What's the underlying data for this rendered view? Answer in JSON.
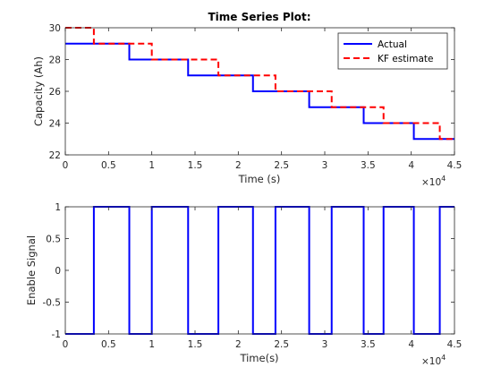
{
  "chart_data": [
    {
      "type": "line",
      "title": "Time Series Plot:",
      "xlabel": "Time (s)",
      "ylabel": "Capacity (Ah)",
      "x_multiplier": "×10",
      "x_multiplier_exp": "4",
      "xlim": [
        0,
        4.5
      ],
      "ylim": [
        22,
        30
      ],
      "xticks": [
        "0",
        "0.5",
        "1",
        "1.5",
        "2",
        "2.5",
        "3",
        "3.5",
        "4",
        "4.5"
      ],
      "yticks": [
        "22",
        "24",
        "26",
        "28",
        "30"
      ],
      "legend_position": "top-right",
      "grid": false,
      "series": [
        {
          "name": "Actual",
          "color": "#0000ff",
          "style": "solid",
          "step": true,
          "x": [
            0,
            0.74,
            1.42,
            2.17,
            2.82,
            3.45,
            4.03,
            4.5
          ],
          "y": [
            29,
            28,
            27,
            26,
            25,
            24,
            23,
            23
          ]
        },
        {
          "name": "KF estimate",
          "color": "#ff0000",
          "style": "dashed",
          "step": true,
          "x": [
            0,
            0.33,
            1.0,
            1.77,
            2.43,
            3.08,
            3.68,
            4.33,
            4.5
          ],
          "y": [
            30,
            29,
            28,
            27,
            26,
            25,
            24,
            23,
            23
          ]
        }
      ]
    },
    {
      "type": "line",
      "title": "",
      "xlabel": "Time(s)",
      "ylabel": "Enable Signal",
      "x_multiplier": "×10",
      "x_multiplier_exp": "4",
      "xlim": [
        0,
        4.5
      ],
      "ylim": [
        -1,
        1
      ],
      "xticks": [
        "0",
        "0.5",
        "1",
        "1.5",
        "2",
        "2.5",
        "3",
        "3.5",
        "4",
        "4.5"
      ],
      "yticks": [
        "-1",
        "-0.5",
        "0",
        "0.5",
        "1"
      ],
      "grid": false,
      "series": [
        {
          "color": "#0000ff",
          "style": "solid",
          "step": true,
          "x": [
            0,
            0.33,
            0.74,
            1.0,
            1.42,
            1.77,
            2.17,
            2.43,
            2.82,
            3.08,
            3.45,
            3.68,
            4.03,
            4.33,
            4.5
          ],
          "y": [
            -1,
            1,
            -1,
            1,
            -1,
            1,
            -1,
            1,
            -1,
            1,
            -1,
            1,
            -1,
            1,
            1
          ]
        }
      ]
    }
  ]
}
